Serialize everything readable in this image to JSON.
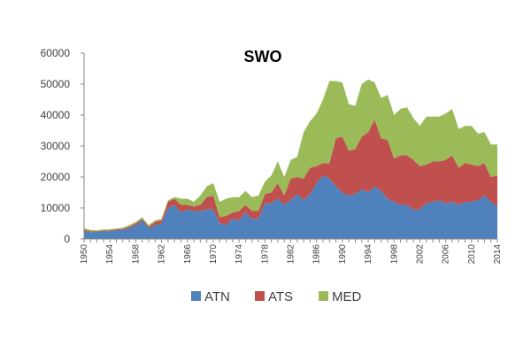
{
  "chart_data": {
    "type": "area",
    "stacked": true,
    "title": "SWO",
    "xlabel": "",
    "ylabel": "",
    "ylim": [
      0,
      60000
    ],
    "yticks": [
      "0",
      "10000",
      "20000",
      "30000",
      "40000",
      "50000",
      "60000"
    ],
    "xticks": [
      "1950",
      "1954",
      "1958",
      "1962",
      "1966",
      "1970",
      "1974",
      "1978",
      "1982",
      "1986",
      "1990",
      "1994",
      "1998",
      "2002",
      "2006",
      "2010",
      "2014"
    ],
    "x": [
      1950,
      1951,
      1952,
      1953,
      1954,
      1955,
      1956,
      1957,
      1958,
      1959,
      1960,
      1961,
      1962,
      1963,
      1964,
      1965,
      1966,
      1967,
      1968,
      1969,
      1970,
      1971,
      1972,
      1973,
      1974,
      1975,
      1976,
      1977,
      1978,
      1979,
      1980,
      1981,
      1982,
      1983,
      1984,
      1985,
      1986,
      1987,
      1988,
      1989,
      1990,
      1991,
      1992,
      1993,
      1994,
      1995,
      1996,
      1997,
      1998,
      1999,
      2000,
      2001,
      2002,
      2003,
      2004,
      2005,
      2006,
      2007,
      2008,
      2009,
      2010,
      2011,
      2012,
      2013,
      2014
    ],
    "series": [
      {
        "name": "ATN",
        "color": "#4f81bd",
        "values": [
          2500,
          2200,
          2300,
          2600,
          2500,
          2800,
          3000,
          3500,
          4500,
          6000,
          3500,
          4500,
          5000,
          10000,
          11000,
          8500,
          9500,
          9000,
          9000,
          9500,
          9500,
          5000,
          4500,
          6500,
          6000,
          8500,
          6500,
          6500,
          11500,
          11500,
          13000,
          11000,
          12500,
          14500,
          12500,
          14500,
          18000,
          20500,
          19500,
          17000,
          15000,
          14000,
          14500,
          16000,
          15000,
          17000,
          15500,
          13000,
          12000,
          11000,
          11000,
          9500,
          9500,
          11500,
          12000,
          12500,
          11500,
          12000,
          11000,
          12000,
          12000,
          12500,
          14000,
          12000,
          10500
        ]
      },
      {
        "name": "ATS",
        "color": "#c0504d",
        "values": [
          500,
          300,
          200,
          200,
          300,
          300,
          300,
          500,
          500,
          500,
          500,
          1000,
          1000,
          2000,
          2000,
          2500,
          1500,
          1500,
          2000,
          4000,
          4500,
          2000,
          3000,
          2000,
          3000,
          2500,
          2500,
          2500,
          3000,
          3500,
          5000,
          3000,
          7000,
          5500,
          7000,
          8500,
          5500,
          4000,
          5000,
          15500,
          18000,
          14500,
          14500,
          17000,
          19500,
          21500,
          17000,
          19000,
          14000,
          16000,
          16000,
          16000,
          14000,
          12500,
          13000,
          12500,
          14000,
          15000,
          12000,
          12500,
          12000,
          11000,
          10500,
          8000,
          10000
        ]
      },
      {
        "name": "MED",
        "color": "#9bbb59",
        "values": [
          500,
          400,
          300,
          300,
          300,
          300,
          300,
          500,
          500,
          500,
          500,
          500,
          500,
          500,
          500,
          2000,
          2000,
          1500,
          3000,
          3500,
          4000,
          5000,
          5500,
          5000,
          4500,
          4500,
          4500,
          5000,
          4000,
          5500,
          7000,
          6000,
          6000,
          6500,
          15000,
          15000,
          17000,
          20500,
          26500,
          18500,
          17500,
          15000,
          14000,
          17000,
          17000,
          12000,
          13000,
          14500,
          14000,
          15000,
          15500,
          13500,
          13000,
          15500,
          14500,
          14500,
          15000,
          15000,
          12500,
          12000,
          12500,
          10500,
          10000,
          10500,
          10000
        ]
      }
    ],
    "legend_placement": "bottom",
    "grid": false
  }
}
